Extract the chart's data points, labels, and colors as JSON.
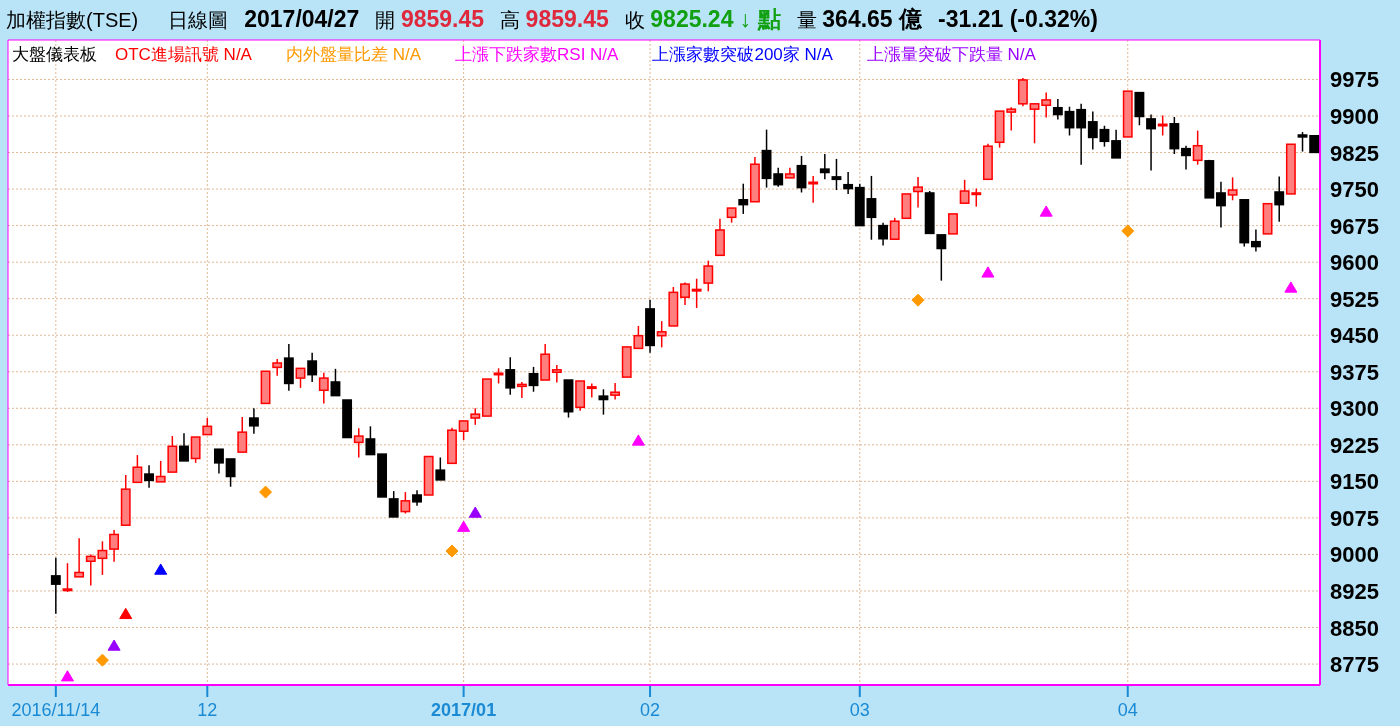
{
  "chart_data": {
    "type": "candlestick",
    "title": "加權指數(TSE)",
    "subtitle": "日線圖",
    "annotations": [
      "2017/04/27",
      "開 9859.45",
      "高 9859.45",
      "收 9825.24 ↓ 點",
      "量 364.65 億",
      "-31.21 (-0.32%)"
    ],
    "legend_title": "大盤儀表板",
    "legend": "top left",
    "grid": true,
    "categories": [
      "2016/11/14",
      null,
      null,
      null,
      null,
      null,
      null,
      null,
      null,
      null,
      null,
      null,
      null,
      "12",
      null,
      null,
      null,
      null,
      null,
      null,
      null,
      null,
      null,
      null,
      null,
      null,
      null,
      null,
      null,
      null,
      null,
      null,
      null,
      null,
      null,
      "2017/01",
      null,
      null,
      null,
      null,
      null,
      null,
      null,
      null,
      null,
      null,
      null,
      null,
      null,
      null,
      null,
      "02",
      null,
      null,
      null,
      null,
      null,
      null,
      null,
      null,
      null,
      null,
      null,
      null,
      null,
      null,
      null,
      null,
      null,
      "03",
      null,
      null,
      null,
      null,
      null,
      null,
      null,
      null,
      null,
      null,
      null,
      null,
      null,
      null,
      null,
      null,
      null,
      null,
      null,
      null,
      null,
      null,
      "04",
      null,
      null,
      null,
      null,
      null,
      null,
      null,
      null,
      null,
      null,
      null,
      null,
      null,
      null,
      null,
      null
    ],
    "ylim": [
      8732,
      10056
    ],
    "yticks": [
      8775,
      8850,
      8925,
      9000,
      9075,
      9150,
      9225,
      9300,
      9375,
      9450,
      9525,
      9600,
      9675,
      9750,
      9825,
      9900,
      9975
    ],
    "ohlc": [
      [
        8956,
        8993,
        8878,
        8939
      ],
      [
        8929,
        8982,
        8923,
        8929
      ],
      [
        8954,
        9033,
        8954,
        8963
      ],
      [
        8986,
        9000,
        8936,
        8996
      ],
      [
        8992,
        9027,
        8958,
        9008
      ],
      [
        9011,
        9050,
        8985,
        9041
      ],
      [
        9060,
        9163,
        9060,
        9134
      ],
      [
        9148,
        9204,
        9148,
        9179
      ],
      [
        9165,
        9183,
        9137,
        9152
      ],
      [
        9149,
        9192,
        9149,
        9160
      ],
      [
        9169,
        9243,
        9169,
        9222
      ],
      [
        9222,
        9249,
        9192,
        9192
      ],
      [
        9197,
        9241,
        9188,
        9241
      ],
      [
        9246,
        9280,
        9246,
        9263
      ],
      [
        9216,
        9216,
        9166,
        9188
      ],
      [
        9196,
        9196,
        9139,
        9160
      ],
      [
        9210,
        9282,
        9210,
        9251
      ],
      [
        9280,
        9300,
        9248,
        9264
      ],
      [
        9310,
        9376,
        9310,
        9376
      ],
      [
        9384,
        9401,
        9367,
        9393
      ],
      [
        9403,
        9432,
        9336,
        9351
      ],
      [
        9362,
        9382,
        9342,
        9382
      ],
      [
        9397,
        9414,
        9354,
        9369
      ],
      [
        9337,
        9373,
        9310,
        9362
      ],
      [
        9354,
        9381,
        9326,
        9326
      ],
      [
        9317,
        9317,
        9240,
        9240
      ],
      [
        9230,
        9259,
        9199,
        9243
      ],
      [
        9237,
        9263,
        9205,
        9205
      ],
      [
        9206,
        9206,
        9118,
        9118
      ],
      [
        9114,
        9130,
        9077,
        9077
      ],
      [
        9088,
        9128,
        9084,
        9110
      ],
      [
        9122,
        9132,
        9100,
        9108
      ],
      [
        9122,
        9201,
        9122,
        9201
      ],
      [
        9173,
        9199,
        9153,
        9153
      ],
      [
        9187,
        9260,
        9187,
        9255
      ],
      [
        9253,
        9274,
        9235,
        9274
      ],
      [
        9280,
        9300,
        9266,
        9288
      ],
      [
        9284,
        9360,
        9284,
        9360
      ],
      [
        9372,
        9382,
        9351,
        9372
      ],
      [
        9379,
        9405,
        9328,
        9342
      ],
      [
        9345,
        9354,
        9321,
        9349
      ],
      [
        9371,
        9385,
        9334,
        9347
      ],
      [
        9358,
        9432,
        9358,
        9411
      ],
      [
        9374,
        9389,
        9353,
        9379
      ],
      [
        9358,
        9358,
        9281,
        9293
      ],
      [
        9302,
        9356,
        9295,
        9356
      ],
      [
        9344,
        9351,
        9322,
        9344
      ],
      [
        9325,
        9339,
        9287,
        9318
      ],
      [
        9327,
        9352,
        9318,
        9333
      ],
      [
        9364,
        9426,
        9364,
        9426
      ],
      [
        9423,
        9469,
        9423,
        9449
      ],
      [
        9504,
        9523,
        9414,
        9429
      ],
      [
        9449,
        9479,
        9425,
        9457
      ],
      [
        9469,
        9549,
        9469,
        9538
      ],
      [
        9528,
        9558,
        9512,
        9555
      ],
      [
        9544,
        9566,
        9506,
        9544
      ],
      [
        9557,
        9603,
        9540,
        9592
      ],
      [
        9614,
        9689,
        9614,
        9666
      ],
      [
        9692,
        9711,
        9681,
        9711
      ],
      [
        9728,
        9761,
        9699,
        9718
      ],
      [
        9724,
        9816,
        9724,
        9801
      ],
      [
        9829,
        9872,
        9753,
        9772
      ],
      [
        9781,
        9794,
        9755,
        9759
      ],
      [
        9773,
        9794,
        9773,
        9781
      ],
      [
        9798,
        9818,
        9743,
        9753
      ],
      [
        9764,
        9777,
        9722,
        9764
      ],
      [
        9791,
        9822,
        9770,
        9784
      ],
      [
        9775,
        9812,
        9748,
        9770
      ],
      [
        9759,
        9785,
        9740,
        9751
      ],
      [
        9753,
        9761,
        9675,
        9675
      ],
      [
        9730,
        9777,
        9646,
        9692
      ],
      [
        9675,
        9681,
        9634,
        9648
      ],
      [
        9647,
        9691,
        9647,
        9684
      ],
      [
        9690,
        9740,
        9690,
        9740
      ],
      [
        9745,
        9775,
        9712,
        9754
      ],
      [
        9742,
        9746,
        9659,
        9659
      ],
      [
        9656,
        9656,
        9562,
        9628
      ],
      [
        9658,
        9699,
        9658,
        9699
      ],
      [
        9721,
        9769,
        9721,
        9746
      ],
      [
        9742,
        9751,
        9714,
        9742
      ],
      [
        9770,
        9843,
        9770,
        9838
      ],
      [
        9846,
        9910,
        9835,
        9910
      ],
      [
        9908,
        9918,
        9870,
        9914
      ],
      [
        9925,
        9978,
        9920,
        9974
      ],
      [
        9914,
        9925,
        9844,
        9925
      ],
      [
        9922,
        9948,
        9897,
        9933
      ],
      [
        9917,
        9935,
        9893,
        9903
      ],
      [
        9909,
        9919,
        9860,
        9876
      ],
      [
        9913,
        9925,
        9800,
        9876
      ],
      [
        9888,
        9909,
        9831,
        9856
      ],
      [
        9872,
        9880,
        9837,
        9848
      ],
      [
        9849,
        9872,
        9814,
        9814
      ],
      [
        9857,
        9951,
        9857,
        9951
      ],
      [
        9948,
        9948,
        9881,
        9899
      ],
      [
        9894,
        9903,
        9788,
        9874
      ],
      [
        9883,
        9901,
        9860,
        9883
      ],
      [
        9884,
        9898,
        9822,
        9833
      ],
      [
        9833,
        9839,
        9790,
        9819
      ],
      [
        9809,
        9870,
        9800,
        9839
      ],
      [
        9808,
        9810,
        9732,
        9732
      ],
      [
        9742,
        9765,
        9671,
        9716
      ],
      [
        9738,
        9774,
        9727,
        9748
      ],
      [
        9728,
        9728,
        9632,
        9640
      ],
      [
        9642,
        9667,
        9622,
        9632
      ],
      [
        9658,
        9720,
        9658,
        9720
      ],
      [
        9744,
        9776,
        9683,
        9718
      ],
      [
        9740,
        9842,
        9740,
        9842
      ],
      [
        9861,
        9867,
        9827,
        9857
      ],
      [
        9859.45,
        9859.45,
        9825,
        9825.24
      ]
    ],
    "series": [
      {
        "name": "OTC進場訊號 N/A",
        "color": "#ff0000",
        "type": "scatter",
        "marker": "triangle",
        "values": [
          null,
          null,
          null,
          null,
          null,
          null,
          8877,
          null,
          null,
          null,
          null,
          null,
          null,
          null,
          null,
          null,
          null,
          null,
          null,
          null,
          null,
          null,
          null,
          null,
          null,
          null,
          null,
          null,
          null,
          null,
          null,
          null,
          null,
          null,
          null,
          null,
          null,
          null,
          null,
          null,
          null,
          null,
          null,
          null,
          null,
          null,
          null,
          null,
          null,
          null,
          null,
          null,
          null,
          null,
          null,
          null,
          null,
          null,
          null,
          null,
          null,
          null,
          null,
          null,
          null,
          null,
          null,
          null,
          null,
          null,
          null,
          null,
          null,
          null,
          null,
          null,
          null,
          null,
          null,
          null,
          null,
          null,
          null,
          null,
          null,
          null,
          null,
          null,
          null,
          null,
          null,
          null,
          null,
          null,
          null,
          null,
          null,
          null,
          null,
          null,
          null,
          null,
          null,
          null,
          null,
          null,
          null,
          null,
          null
        ]
      },
      {
        "name": "内外盤量比差 N/A",
        "color": "#ff9900",
        "type": "scatter",
        "marker": "diamond",
        "values": [
          null,
          null,
          null,
          null,
          8783,
          null,
          null,
          null,
          null,
          null,
          null,
          null,
          null,
          null,
          null,
          null,
          null,
          null,
          9128,
          null,
          null,
          null,
          null,
          null,
          null,
          null,
          null,
          null,
          null,
          null,
          null,
          null,
          null,
          null,
          9007,
          null,
          null,
          null,
          null,
          null,
          null,
          null,
          null,
          null,
          null,
          null,
          null,
          null,
          null,
          null,
          null,
          null,
          null,
          null,
          null,
          null,
          null,
          null,
          null,
          null,
          null,
          null,
          null,
          null,
          null,
          null,
          null,
          null,
          null,
          null,
          null,
          null,
          null,
          null,
          9522,
          null,
          null,
          null,
          null,
          null,
          null,
          null,
          null,
          null,
          null,
          null,
          null,
          null,
          null,
          null,
          null,
          null,
          9664,
          null,
          null,
          null,
          null,
          null,
          null,
          null,
          null,
          null,
          null,
          null,
          null,
          null,
          null,
          null,
          null
        ]
      },
      {
        "name": "上漲下跌家數RSI N/A",
        "color": "#ff00ff",
        "type": "scatter",
        "marker": "triangle",
        "values": [
          null,
          8749,
          null,
          null,
          null,
          null,
          null,
          null,
          null,
          null,
          null,
          null,
          null,
          null,
          null,
          null,
          null,
          null,
          null,
          null,
          null,
          null,
          null,
          null,
          null,
          null,
          null,
          null,
          null,
          null,
          null,
          null,
          null,
          null,
          null,
          9056,
          null,
          null,
          null,
          null,
          null,
          null,
          null,
          null,
          null,
          null,
          null,
          null,
          null,
          null,
          9233,
          null,
          null,
          null,
          null,
          null,
          null,
          null,
          null,
          null,
          null,
          null,
          null,
          null,
          null,
          null,
          null,
          null,
          null,
          null,
          null,
          null,
          null,
          null,
          null,
          null,
          null,
          null,
          null,
          null,
          9578,
          null,
          null,
          null,
          null,
          9703,
          null,
          null,
          null,
          null,
          null,
          null,
          null,
          null,
          null,
          null,
          null,
          null,
          null,
          null,
          null,
          null,
          null,
          null,
          null,
          null,
          9547,
          null,
          null
        ]
      },
      {
        "name": "上漲家數突破200家 N/A",
        "color": "#0000ff",
        "type": "scatter",
        "marker": "triangle",
        "values": [
          null,
          null,
          null,
          null,
          null,
          null,
          null,
          null,
          null,
          8968,
          null,
          null,
          null,
          null,
          null,
          null,
          null,
          null,
          null,
          null,
          null,
          null,
          null,
          null,
          null,
          null,
          null,
          null,
          null,
          null,
          null,
          null,
          null,
          null,
          null,
          null,
          null,
          null,
          null,
          null,
          null,
          null,
          null,
          null,
          null,
          null,
          null,
          null,
          null,
          null,
          null,
          null,
          null,
          null,
          null,
          null,
          null,
          null,
          null,
          null,
          null,
          null,
          null,
          null,
          null,
          null,
          null,
          null,
          null,
          null,
          null,
          null,
          null,
          null,
          null,
          null,
          null,
          null,
          null,
          null,
          null,
          null,
          null,
          null,
          null,
          null,
          null,
          null,
          null,
          null,
          null,
          null,
          null,
          null,
          null,
          null,
          null,
          null,
          null,
          null,
          null,
          null,
          null,
          null,
          null,
          null,
          null,
          null,
          null
        ]
      },
      {
        "name": "上漲量突破下跌量 N/A",
        "color": "#9900ff",
        "type": "scatter",
        "marker": "triangle",
        "values": [
          null,
          null,
          null,
          null,
          null,
          8812,
          null,
          null,
          null,
          null,
          null,
          null,
          null,
          null,
          null,
          null,
          null,
          null,
          null,
          null,
          null,
          null,
          null,
          null,
          null,
          null,
          null,
          null,
          null,
          null,
          null,
          null,
          null,
          null,
          null,
          null,
          9085,
          null,
          null,
          null,
          null,
          null,
          null,
          null,
          null,
          null,
          null,
          null,
          null,
          null,
          null,
          null,
          null,
          null,
          null,
          null,
          null,
          null,
          null,
          null,
          null,
          null,
          null,
          null,
          null,
          null,
          null,
          null,
          null,
          null,
          null,
          null,
          null,
          null,
          null,
          null,
          null,
          null,
          null,
          null,
          null,
          null,
          null,
          null,
          null,
          null,
          null,
          null,
          null,
          null,
          null,
          null,
          null,
          null,
          null,
          null,
          null,
          null,
          null,
          null,
          null,
          null,
          null,
          null,
          null,
          null,
          null,
          null,
          null
        ]
      }
    ]
  }
}
